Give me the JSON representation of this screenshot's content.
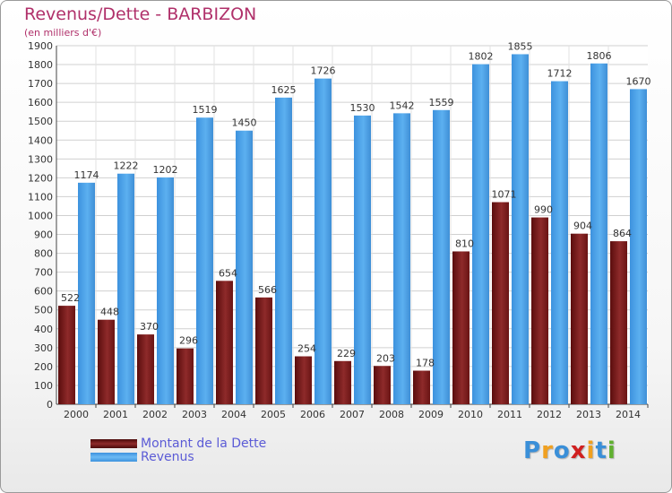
{
  "title": "Revenus/Dette - BARBIZON",
  "subtitle": "(en milliers d'€)",
  "chart_data": {
    "type": "bar",
    "title": "Revenus/Dette - BARBIZON",
    "ylabel": "(en milliers d'€)",
    "categories": [
      "2000",
      "2001",
      "2002",
      "2003",
      "2004",
      "2005",
      "2006",
      "2007",
      "2008",
      "2009",
      "2010",
      "2011",
      "2012",
      "2013",
      "2014"
    ],
    "series": [
      {
        "name": "Montant de la Dette",
        "color": "#7a1a1a",
        "values": [
          522,
          448,
          370,
          296,
          654,
          566,
          254,
          229,
          203,
          178,
          810,
          1071,
          990,
          904,
          864
        ]
      },
      {
        "name": "Revenus",
        "color": "#4aa0e6",
        "values": [
          1174,
          1222,
          1202,
          1519,
          1450,
          1625,
          1726,
          1530,
          1542,
          1559,
          1802,
          1855,
          1712,
          1806,
          1670
        ]
      }
    ],
    "ylim": [
      0,
      1900
    ],
    "yticks": [
      0,
      100,
      200,
      300,
      400,
      500,
      600,
      700,
      800,
      900,
      1000,
      1100,
      1200,
      1300,
      1400,
      1500,
      1600,
      1700,
      1800,
      1900
    ],
    "grid": true,
    "legend": "bottom-left"
  },
  "legend": {
    "items": [
      {
        "label": "Montant de la Dette",
        "color": "#7a1a1a"
      },
      {
        "label": "Revenus",
        "color": "#4aa0e6"
      }
    ]
  },
  "logo": {
    "letters": [
      "P",
      "r",
      "o",
      "x",
      "i",
      "t",
      "i"
    ],
    "colors": [
      "#3a8fd8",
      "#f0a020",
      "#3a8fd8",
      "#d02020",
      "#f0a020",
      "#3a8fd8",
      "#60b030"
    ]
  }
}
